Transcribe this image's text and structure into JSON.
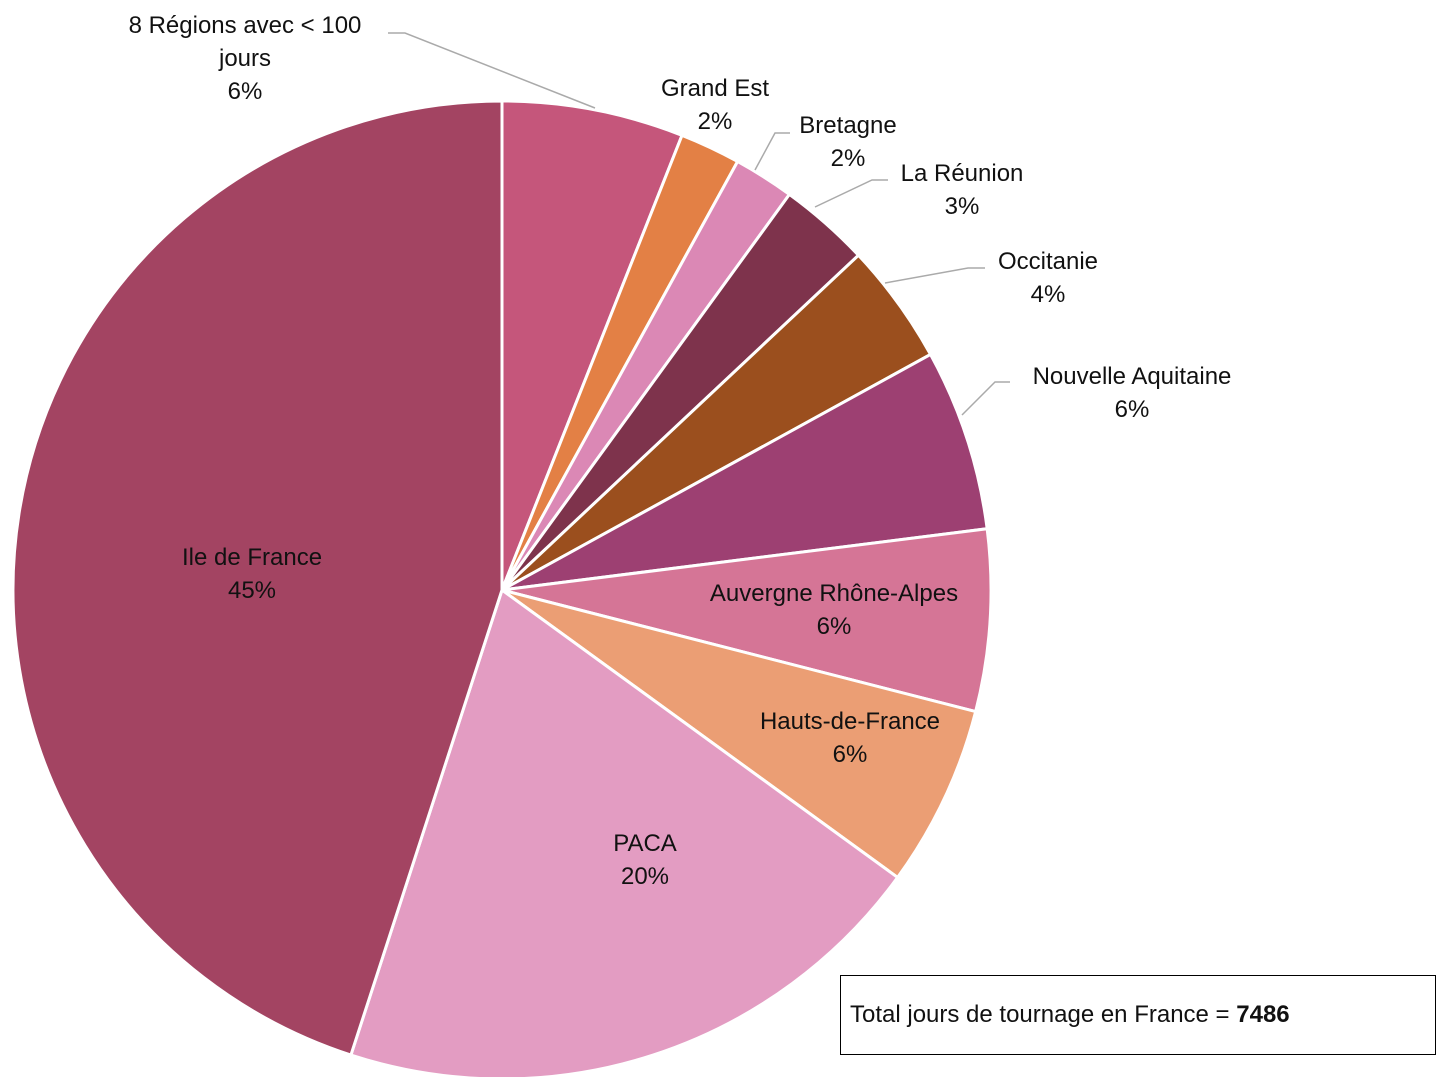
{
  "chart_data": {
    "type": "pie",
    "categories": [
      "8 Régions avec < 100 jours",
      "Grand Est",
      "Bretagne",
      "La Réunion",
      "Occitanie",
      "Nouvelle Aquitaine",
      "Auvergne Rhône-Alpes",
      "Hauts-de-France",
      "PACA",
      "Ile de France"
    ],
    "values": [
      6,
      2,
      2,
      3,
      4,
      6,
      6,
      6,
      20,
      45
    ],
    "value_labels": [
      "6%",
      "2%",
      "2%",
      "3%",
      "4%",
      "6%",
      "6%",
      "6%",
      "20%",
      "45%"
    ],
    "colors": [
      "#c5567b",
      "#e38045",
      "#db88b5",
      "#7e334c",
      "#9b4f1e",
      "#9d4072",
      "#d57596",
      "#eb9e74",
      "#e39cc2",
      "#a34462"
    ],
    "annotation": {
      "text": "Total jours de tournage en France =",
      "value": 7486
    }
  }
}
